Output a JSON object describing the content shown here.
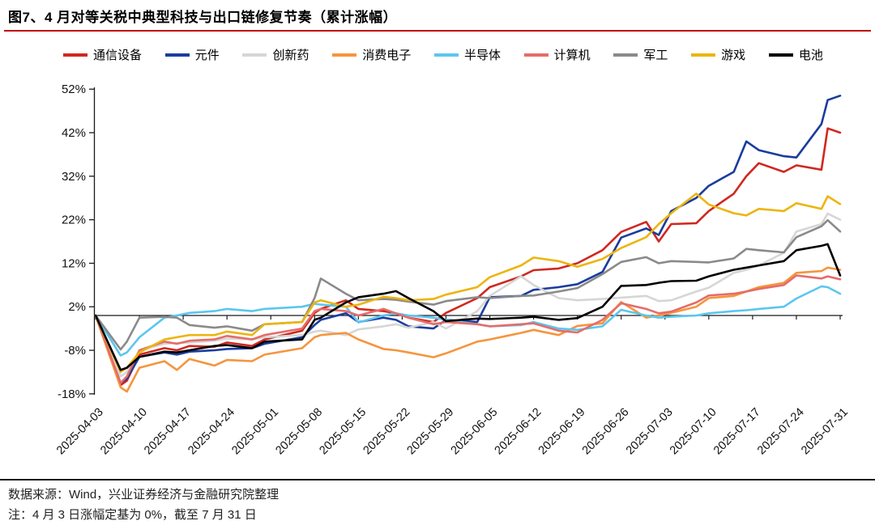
{
  "header": {
    "title": "图7、4 月对等关税中典型科技与出口链修复节奏（累计涨幅）"
  },
  "footer": {
    "source": "数据来源：Wind，兴业证券经济与金融研究院整理",
    "note": "注：4 月 3 日涨幅定基为 0%，截至 7 月 31 日"
  },
  "colors": {
    "title_rule": "#C00000",
    "axis": "#1a1a1a",
    "text": "#000000"
  },
  "chart_data": {
    "type": "line",
    "title": "图7、4 月对等关税中典型科技与出口链修复节奏（累计涨幅）",
    "xlabel": "",
    "ylabel": "",
    "ylim": [
      -18,
      52
    ],
    "grid": false,
    "legend_position": "top",
    "y_ticks": [
      52,
      42,
      32,
      22,
      12,
      2,
      -8,
      -18
    ],
    "y_tick_suffix": "%",
    "x_tick_labels": [
      "2025-04-03",
      "2025-04-10",
      "2025-04-17",
      "2025-04-24",
      "2025-05-01",
      "2025-05-08",
      "2025-05-15",
      "2025-05-22",
      "2025-05-29",
      "2025-06-05",
      "2025-06-12",
      "2025-06-19",
      "2025-06-26",
      "2025-07-03",
      "2025-07-10",
      "2025-07-17",
      "2025-07-24",
      "2025-07-31"
    ],
    "x_dates": [
      "04-03",
      "04-07",
      "04-08",
      "04-10",
      "04-14",
      "04-16",
      "04-18",
      "04-22",
      "04-24",
      "04-28",
      "04-30",
      "05-06",
      "05-08",
      "05-09",
      "05-13",
      "05-15",
      "05-19",
      "05-21",
      "05-23",
      "05-27",
      "05-29",
      "06-03",
      "06-05",
      "06-10",
      "06-12",
      "06-16",
      "06-19",
      "06-23",
      "06-26",
      "06-30",
      "07-02",
      "07-04",
      "07-08",
      "07-10",
      "07-14",
      "07-16",
      "07-18",
      "07-22",
      "07-24",
      "07-28",
      "07-29",
      "07-31"
    ],
    "series": [
      {
        "name": "通信设备",
        "color": "#D02820",
        "values": [
          0,
          -16,
          -15,
          -9,
          -7.5,
          -8,
          -7,
          -7.2,
          -6.2,
          -7,
          -5.5,
          -3.5,
          0.6,
          1.5,
          3.5,
          1.5,
          1,
          0.5,
          -0.5,
          -1.5,
          0.6,
          4,
          6.5,
          9,
          10.4,
          10.8,
          12,
          15,
          19.2,
          21.5,
          17,
          21,
          21.2,
          24,
          28,
          32,
          35,
          33,
          34.5,
          33.5,
          43,
          42
        ]
      },
      {
        "name": "元件",
        "color": "#1A3C9E",
        "values": [
          0,
          -15.5,
          -14.5,
          -9.5,
          -8.5,
          -9,
          -8.3,
          -8,
          -7.7,
          -7.5,
          -6.5,
          -5,
          -2.2,
          -1,
          0.5,
          -1.5,
          -0.5,
          -1,
          -2.5,
          -3,
          -1,
          -1.5,
          4.2,
          4.5,
          5.9,
          6.5,
          7.2,
          10,
          17.9,
          20,
          18.5,
          24,
          27,
          29.8,
          33,
          40,
          38,
          36.6,
          36.3,
          44,
          49.5,
          50.5
        ]
      },
      {
        "name": "创新药",
        "color": "#D6D6D6",
        "values": [
          0,
          -14,
          -13,
          -8,
          -6.5,
          -6.3,
          -6.2,
          -5.8,
          -5.3,
          -5.5,
          -5,
          -4.5,
          -3.7,
          -3.5,
          -4.5,
          -3.2,
          -2.5,
          -2,
          -2.8,
          -1.5,
          -3,
          1,
          4.5,
          9,
          7,
          4,
          3.5,
          3.8,
          4.1,
          4.5,
          3.3,
          3.5,
          5.5,
          6.4,
          9.8,
          10.5,
          11.5,
          14.4,
          19.3,
          21,
          23.4,
          22
        ]
      },
      {
        "name": "消费电子",
        "color": "#F5953D",
        "values": [
          0,
          -16.5,
          -17.5,
          -12,
          -10.5,
          -12.5,
          -10,
          -11.5,
          -10.2,
          -10.5,
          -9,
          -7.5,
          -5,
          -4.5,
          -4,
          -5.5,
          -7.7,
          -8,
          -8.5,
          -9.6,
          -8.7,
          -6,
          -5.5,
          -4,
          -3.3,
          -4.5,
          -2.4,
          -1.8,
          3.1,
          -0.5,
          0,
          0.6,
          2,
          4,
          4.5,
          5.5,
          6.5,
          7.5,
          9.8,
          10.2,
          11,
          10.5
        ]
      },
      {
        "name": "半导体",
        "color": "#5BC6F0",
        "values": [
          0,
          -9.2,
          -8.5,
          -5,
          -0.5,
          0,
          0.6,
          1,
          1.5,
          1,
          1.5,
          2,
          2.7,
          2.5,
          2,
          -1.6,
          0,
          0.5,
          0,
          -0.5,
          -1,
          -2,
          -2.5,
          -2.2,
          -1.5,
          -3,
          -3.3,
          -2.5,
          1.3,
          0,
          -0.5,
          -0.3,
          0,
          0.5,
          1,
          1.2,
          1.5,
          2,
          3.9,
          6.7,
          6.5,
          5
        ]
      },
      {
        "name": "计算机",
        "color": "#E56C69",
        "values": [
          0,
          -15.5,
          -14,
          -8,
          -6,
          -6.5,
          -5.8,
          -5.5,
          -4.7,
          -5.5,
          -4.5,
          -3,
          1,
          1.5,
          1,
          0,
          1.5,
          0.5,
          -0.5,
          -2,
          -1.5,
          -2,
          -2.5,
          -2,
          -1.8,
          -3.5,
          -3.9,
          -1,
          2.8,
          1.5,
          0.5,
          0.9,
          3,
          4.6,
          5,
          5.5,
          6.1,
          7,
          9.2,
          8.5,
          9,
          8.3
        ]
      },
      {
        "name": "军工",
        "color": "#8A8A8A",
        "values": [
          0,
          -7.8,
          -6,
          -0.5,
          -0.3,
          -0.5,
          -2.2,
          -2.8,
          -2.5,
          -3.5,
          -2,
          -1.5,
          4,
          8.5,
          5,
          3.5,
          3.8,
          3.6,
          3.2,
          2.5,
          3.3,
          4.2,
          4,
          4.5,
          4.6,
          5.5,
          6.3,
          9.5,
          12.3,
          13.4,
          12,
          12.5,
          12.3,
          12.2,
          13.1,
          15.3,
          15,
          14.5,
          18,
          20.5,
          21.9,
          19.3
        ]
      },
      {
        "name": "游戏",
        "color": "#ECB50F",
        "values": [
          0,
          -13,
          -12,
          -8.5,
          -5.5,
          -5,
          -4.5,
          -4.5,
          -3.7,
          -4.5,
          -2,
          -1.5,
          3,
          3.5,
          2,
          2.5,
          4.3,
          4,
          3.5,
          3.8,
          4.8,
          6.5,
          8.8,
          11.5,
          13.3,
          12.5,
          11.2,
          13,
          15.5,
          18,
          21,
          23.5,
          28,
          25.5,
          23.5,
          23,
          24.5,
          24,
          25.8,
          24.5,
          27.4,
          25.6
        ]
      },
      {
        "name": "电池",
        "color": "#000000",
        "values": [
          0,
          -12.5,
          -12,
          -9.5,
          -8.3,
          -8.5,
          -8,
          -7,
          -6.8,
          -7.5,
          -6,
          -5.5,
          -1,
          -0.5,
          3,
          4.2,
          5,
          5.6,
          4,
          1,
          -1.3,
          -0.7,
          -0.8,
          -0.5,
          -0.3,
          -1,
          -0.6,
          2,
          6.8,
          7,
          7.5,
          7.9,
          8,
          9,
          10.5,
          11,
          11.5,
          12.5,
          15,
          16,
          16.4,
          9.2
        ]
      }
    ]
  }
}
